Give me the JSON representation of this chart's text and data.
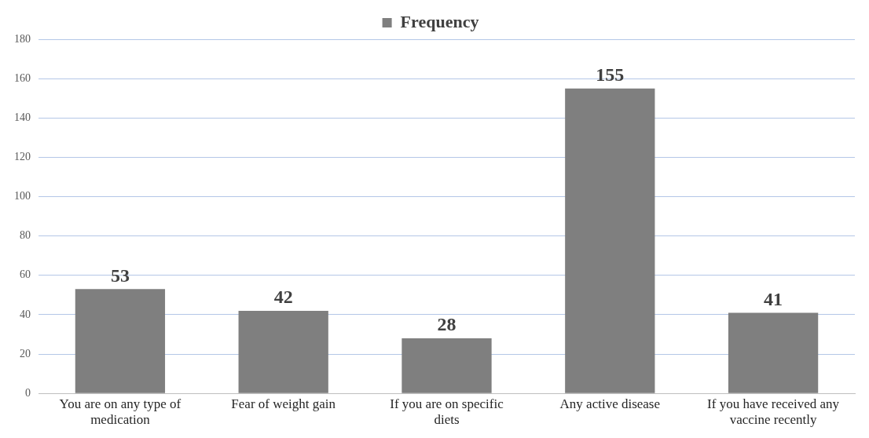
{
  "chart_data": {
    "type": "bar",
    "categories": [
      "You are on any type of medication",
      "Fear of weight gain",
      "If you are on specific diets",
      "Any active disease",
      "If you have received any vaccine recently"
    ],
    "series": [
      {
        "name": "Frequency",
        "color": "#7f7f7f",
        "values": [
          53,
          42,
          28,
          155,
          41
        ]
      }
    ],
    "ylim": [
      0,
      180
    ],
    "yticks": [
      0,
      20,
      40,
      60,
      80,
      100,
      120,
      140,
      160,
      180
    ],
    "grid": "y",
    "legend": "top",
    "data_labels": true
  }
}
